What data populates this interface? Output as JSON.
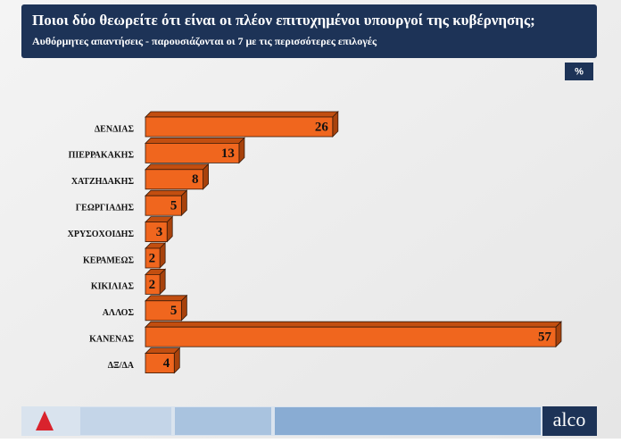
{
  "chart_data": {
    "type": "bar",
    "orientation": "horizontal",
    "title": "Ποιοι δύο θεωρείτε ότι είναι οι πλέον επιτυχημένοι υπουργοί της κυβέρνησης;",
    "subtitle": "Αυθόρμητες απαντήσεις - παρουσιάζονται οι 7 με τις περισσότερες επιλογές",
    "unit_label": "%",
    "categories": [
      "ΔΕΝΔΙΑΣ",
      "ΠΙΕΡΡΑΚΑΚΗΣ",
      "ΧΑΤΖΗΔΑΚΗΣ",
      "ΓΕΩΡΓΙΑΔΗΣ",
      "ΧΡΥΣΟΧΟΙΔΗΣ",
      "ΚΕΡΑΜΕΩΣ",
      "ΚΙΚΙΛΙΑΣ",
      "ΑΛΛΟΣ",
      "ΚΑΝΕΝΑΣ",
      "ΔΞ/ΔΑ"
    ],
    "values": [
      26,
      13,
      8,
      5,
      3,
      2,
      2,
      5,
      57,
      4
    ],
    "color": "#f0661e"
  },
  "footer": {
    "logo": "alco"
  }
}
